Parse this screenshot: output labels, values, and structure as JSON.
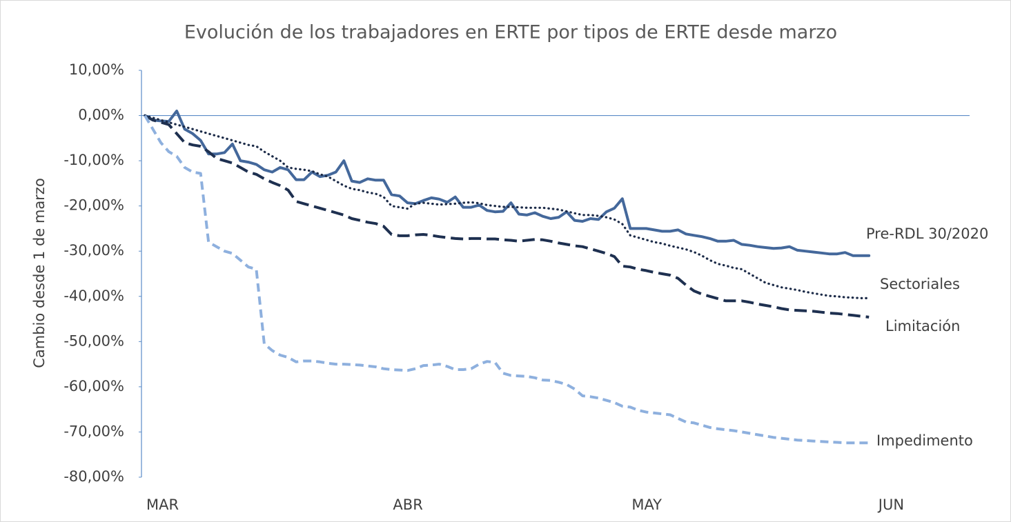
{
  "chart_data": {
    "type": "line",
    "title": "Evolución de los trabajadores en ERTE por tipos de ERTE desde marzo",
    "ylabel": "Cambio desde 1 de marzo",
    "categories": [
      "MAR",
      null,
      null,
      null,
      null,
      null,
      null,
      null,
      null,
      null,
      null,
      null,
      null,
      null,
      null,
      null,
      null,
      null,
      null,
      null,
      null,
      null,
      null,
      null,
      null,
      null,
      null,
      null,
      null,
      null,
      null,
      "ABR",
      null,
      null,
      null,
      null,
      null,
      null,
      null,
      null,
      null,
      null,
      null,
      null,
      null,
      null,
      null,
      null,
      null,
      null,
      null,
      null,
      null,
      null,
      null,
      null,
      null,
      null,
      null,
      null,
      null,
      "MAY",
      null,
      null,
      null,
      null,
      null,
      null,
      null,
      null,
      null,
      null,
      null,
      null,
      null,
      null,
      null,
      null,
      null,
      null,
      null,
      null,
      null,
      null,
      null,
      null,
      null,
      null,
      null,
      null,
      null,
      null,
      "JUN"
    ],
    "ylim": [
      -80,
      10
    ],
    "yticks": [
      {
        "value": 10,
        "label": "10,00%"
      },
      {
        "value": 0,
        "label": "0,00%"
      },
      {
        "value": -10,
        "label": "-10,00%"
      },
      {
        "value": -20,
        "label": "-20,00%"
      },
      {
        "value": -30,
        "label": "-30,00%"
      },
      {
        "value": -40,
        "label": "-40,00%"
      },
      {
        "value": -50,
        "label": "-50,00%"
      },
      {
        "value": -60,
        "label": "-60,00%"
      },
      {
        "value": -70,
        "label": "-70,00%"
      },
      {
        "value": -80,
        "label": "-80,00%"
      }
    ],
    "series": [
      {
        "name": "Pre-RDL 30/2020",
        "color": "#44689b",
        "style": "solid",
        "values": [
          0,
          -1,
          -1.2,
          -1.3,
          1,
          -3,
          -4,
          -5.5,
          -8.5,
          -8.5,
          -8.2,
          -6.3,
          -10,
          -10.3,
          -10.8,
          -12,
          -12.5,
          -11.5,
          -12,
          -14.2,
          -14.2,
          -12.5,
          -13.5,
          -13.2,
          -12.5,
          -10,
          -14.5,
          -14.8,
          -14,
          -14.3,
          -14.3,
          -17.5,
          -17.8,
          -19.3,
          -19.5,
          -18.8,
          -18.2,
          -18.5,
          -19.2,
          -18,
          -20.3,
          -20.3,
          -19.8,
          -21,
          -21.3,
          -21.2,
          -19.3,
          -21.8,
          -22,
          -21.5,
          -22.3,
          -22.8,
          -22.5,
          -21.3,
          -23.2,
          -23.4,
          -22.8,
          -23,
          -21.3,
          -20.5,
          -18.4,
          -25,
          -25,
          -25,
          -25.3,
          -25.6,
          -25.6,
          -25.3,
          -26.2,
          -26.5,
          -26.8,
          -27.2,
          -27.8,
          -27.8,
          -27.6,
          -28.5,
          -28.7,
          -29,
          -29.2,
          -29.4,
          -29.3,
          -29,
          -29.8,
          -30,
          -30.2,
          -30.4,
          -30.6,
          -30.6,
          -30.3,
          -31,
          -31,
          -31,
          null
        ]
      },
      {
        "name": "Sectoriales",
        "color": "#1c2b48",
        "style": "dotted",
        "values": [
          0,
          -0.5,
          -1,
          -1.5,
          -2,
          -2.5,
          -3,
          -3.5,
          -4,
          -4.5,
          -5,
          -5.5,
          -6,
          -6.5,
          -6.8,
          -8,
          -9,
          -10,
          -11.5,
          -11.8,
          -12,
          -12.3,
          -13,
          -13.5,
          -14.5,
          -15.5,
          -16.2,
          -16.5,
          -17,
          -17.3,
          -18,
          -20,
          -20.3,
          -20.6,
          -19.5,
          -19.3,
          -19.5,
          -19.7,
          -19.6,
          -19.5,
          -19.3,
          -19.2,
          -19.4,
          -19.8,
          -20,
          -20.2,
          -20.2,
          -20.3,
          -20.4,
          -20.4,
          -20.4,
          -20.6,
          -20.8,
          -21.2,
          -21.6,
          -22,
          -22,
          -22.2,
          -22.5,
          -23,
          -24,
          -26.5,
          -27,
          -27.5,
          -28,
          -28.3,
          -28.8,
          -29.2,
          -29.6,
          -30.2,
          -31,
          -32,
          -32.8,
          -33.2,
          -33.7,
          -34,
          -35,
          -36,
          -37,
          -37.5,
          -38,
          -38.3,
          -38.6,
          -39,
          -39.3,
          -39.6,
          -39.9,
          -40,
          -40.2,
          -40.3,
          -40.4,
          -40.4,
          null
        ]
      },
      {
        "name": "Limitación",
        "color": "#1e3050",
        "style": "dashed",
        "values": [
          0,
          -1,
          -1.5,
          -2,
          -4,
          -6,
          -6.5,
          -6.8,
          -8,
          -9.5,
          -10,
          -10.5,
          -11.5,
          -12.5,
          -13,
          -14,
          -14.8,
          -15.5,
          -16.5,
          -19,
          -19.5,
          -20,
          -20.5,
          -21,
          -21.5,
          -22,
          -22.8,
          -23.2,
          -23.6,
          -23.9,
          -24.5,
          -26.3,
          -26.6,
          -26.6,
          -26.4,
          -26.3,
          -26.5,
          -26.8,
          -27,
          -27.2,
          -27.3,
          -27.2,
          -27.2,
          -27.3,
          -27.3,
          -27.5,
          -27.6,
          -27.8,
          -27.6,
          -27.4,
          -27.5,
          -27.8,
          -28.2,
          -28.5,
          -28.8,
          -29,
          -29.5,
          -30,
          -30.5,
          -31.2,
          -33.3,
          -33.5,
          -34,
          -34.3,
          -34.7,
          -35,
          -35.3,
          -36,
          -37.5,
          -38.8,
          -39.5,
          -40,
          -40.5,
          -41,
          -41,
          -41,
          -41.3,
          -41.7,
          -42,
          -42.3,
          -42.7,
          -43,
          -43.1,
          -43.2,
          -43.3,
          -43.5,
          -43.7,
          -43.8,
          -44,
          -44.2,
          -44.4,
          -44.6,
          null
        ]
      },
      {
        "name": "Impedimento",
        "color": "#8eb0de",
        "style": "dashed-light",
        "values": [
          0,
          -3,
          -6,
          -8,
          -9,
          -11.5,
          -12.5,
          -12.8,
          -28,
          -29,
          -30,
          -30.5,
          -32,
          -33.5,
          -34,
          -50.5,
          -52,
          -53,
          -53.5,
          -54.5,
          -54.3,
          -54.3,
          -54.5,
          -54.8,
          -55,
          -55,
          -55.1,
          -55.2,
          -55.4,
          -55.6,
          -56,
          -56.2,
          -56.3,
          -56.4,
          -56,
          -55.3,
          -55.2,
          -55,
          -55.5,
          -56.2,
          -56.2,
          -56,
          -55,
          -54.4,
          -54.6,
          -57,
          -57.5,
          -57.6,
          -57.7,
          -58,
          -58.5,
          -58.6,
          -59,
          -59.5,
          -60.5,
          -62,
          -62.2,
          -62.5,
          -63,
          -63.5,
          -64.3,
          -64.5,
          -65.2,
          -65.6,
          -65.8,
          -66,
          -66.2,
          -67,
          -67.8,
          -68,
          -68.5,
          -69,
          -69.3,
          -69.5,
          -69.7,
          -70,
          -70.3,
          -70.6,
          -70.9,
          -71.2,
          -71.4,
          -71.6,
          -71.8,
          -71.9,
          -72,
          -72.1,
          -72.2,
          -72.3,
          -72.4,
          -72.4,
          -72.4,
          -72.4,
          null
        ]
      }
    ]
  }
}
